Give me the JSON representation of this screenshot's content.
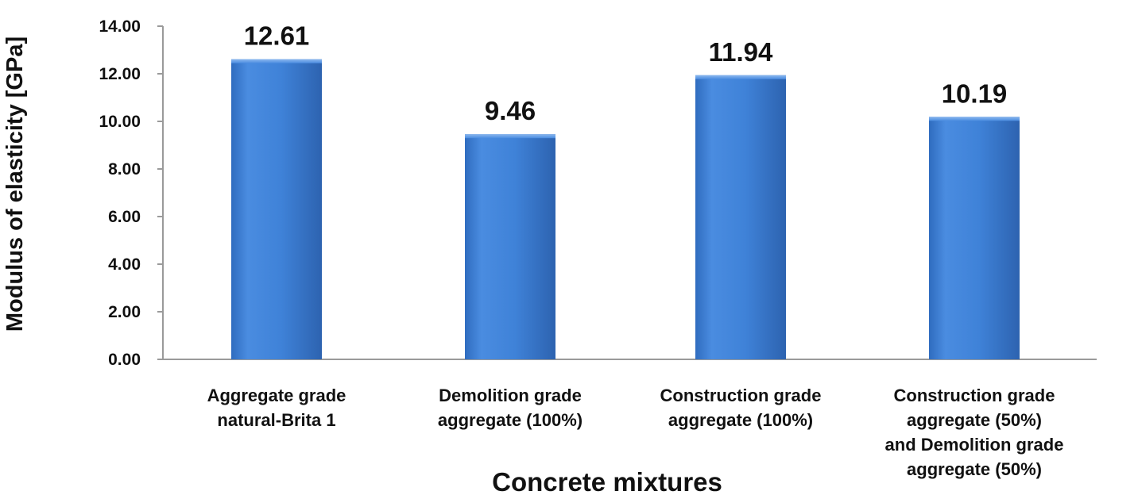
{
  "chart_data": {
    "type": "bar",
    "categories": [
      [
        "Aggregate grade",
        "natural-Brita 1"
      ],
      [
        "Demolition grade",
        "aggregate (100%)"
      ],
      [
        "Construction grade",
        "aggregate (100%)"
      ],
      [
        "Construction grade",
        "aggregate (50%)",
        "and Demolition grade",
        "aggregate (50%)"
      ]
    ],
    "values": [
      12.61,
      9.46,
      11.94,
      10.19
    ],
    "value_labels": [
      "12.61",
      "9.46",
      "11.94",
      "10.19"
    ],
    "xlabel": "Concrete mixtures",
    "ylabel": "Modulus of elasticity [GPa]",
    "ylim": [
      0,
      14
    ],
    "yticks": [
      "0.00",
      "2.00",
      "4.00",
      "6.00",
      "8.00",
      "10.00",
      "12.00",
      "14.00"
    ],
    "grid": false,
    "legend": "none",
    "bar_color": "#3d7fd4",
    "bar_color_dark": "#2a5fa8"
  }
}
